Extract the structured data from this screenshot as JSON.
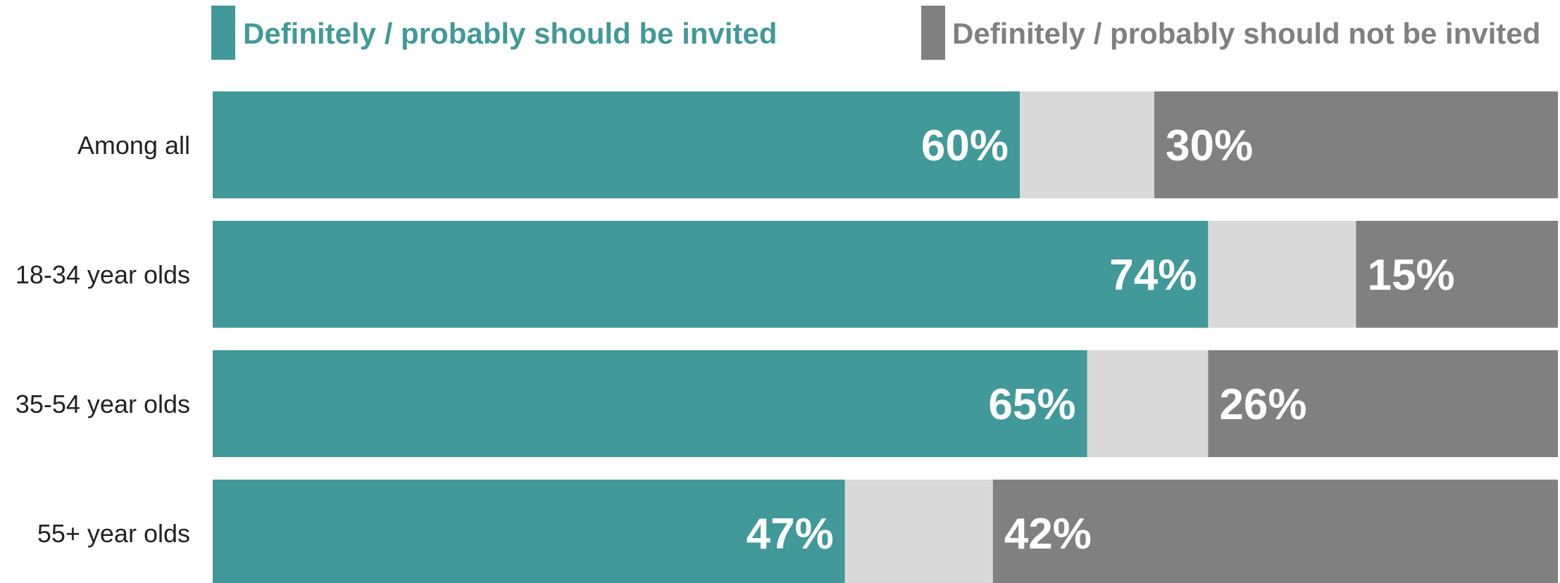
{
  "chart_data": {
    "type": "bar",
    "orientation": "horizontal",
    "stacked": true,
    "categories": [
      "Among all",
      "18-34 year olds",
      "35-54 year olds",
      "55+ year olds"
    ],
    "series": [
      {
        "name": "Definitely / probably should be invited",
        "values": [
          60,
          74,
          65,
          47
        ],
        "color": "#429999"
      },
      {
        "name": "",
        "values": [
          10,
          11,
          9,
          11
        ],
        "color": "#d9d9d9"
      },
      {
        "name": "Definitely / probably should not be invited",
        "values": [
          30,
          15,
          26,
          42
        ],
        "color": "#808080"
      }
    ],
    "value_labels": {
      "invited": [
        "60%",
        "74%",
        "65%",
        "47%"
      ],
      "not_invited": [
        "30%",
        "15%",
        "26%",
        "42%"
      ]
    },
    "xlim": [
      0,
      100
    ],
    "legend_position": "top",
    "grid": false
  }
}
